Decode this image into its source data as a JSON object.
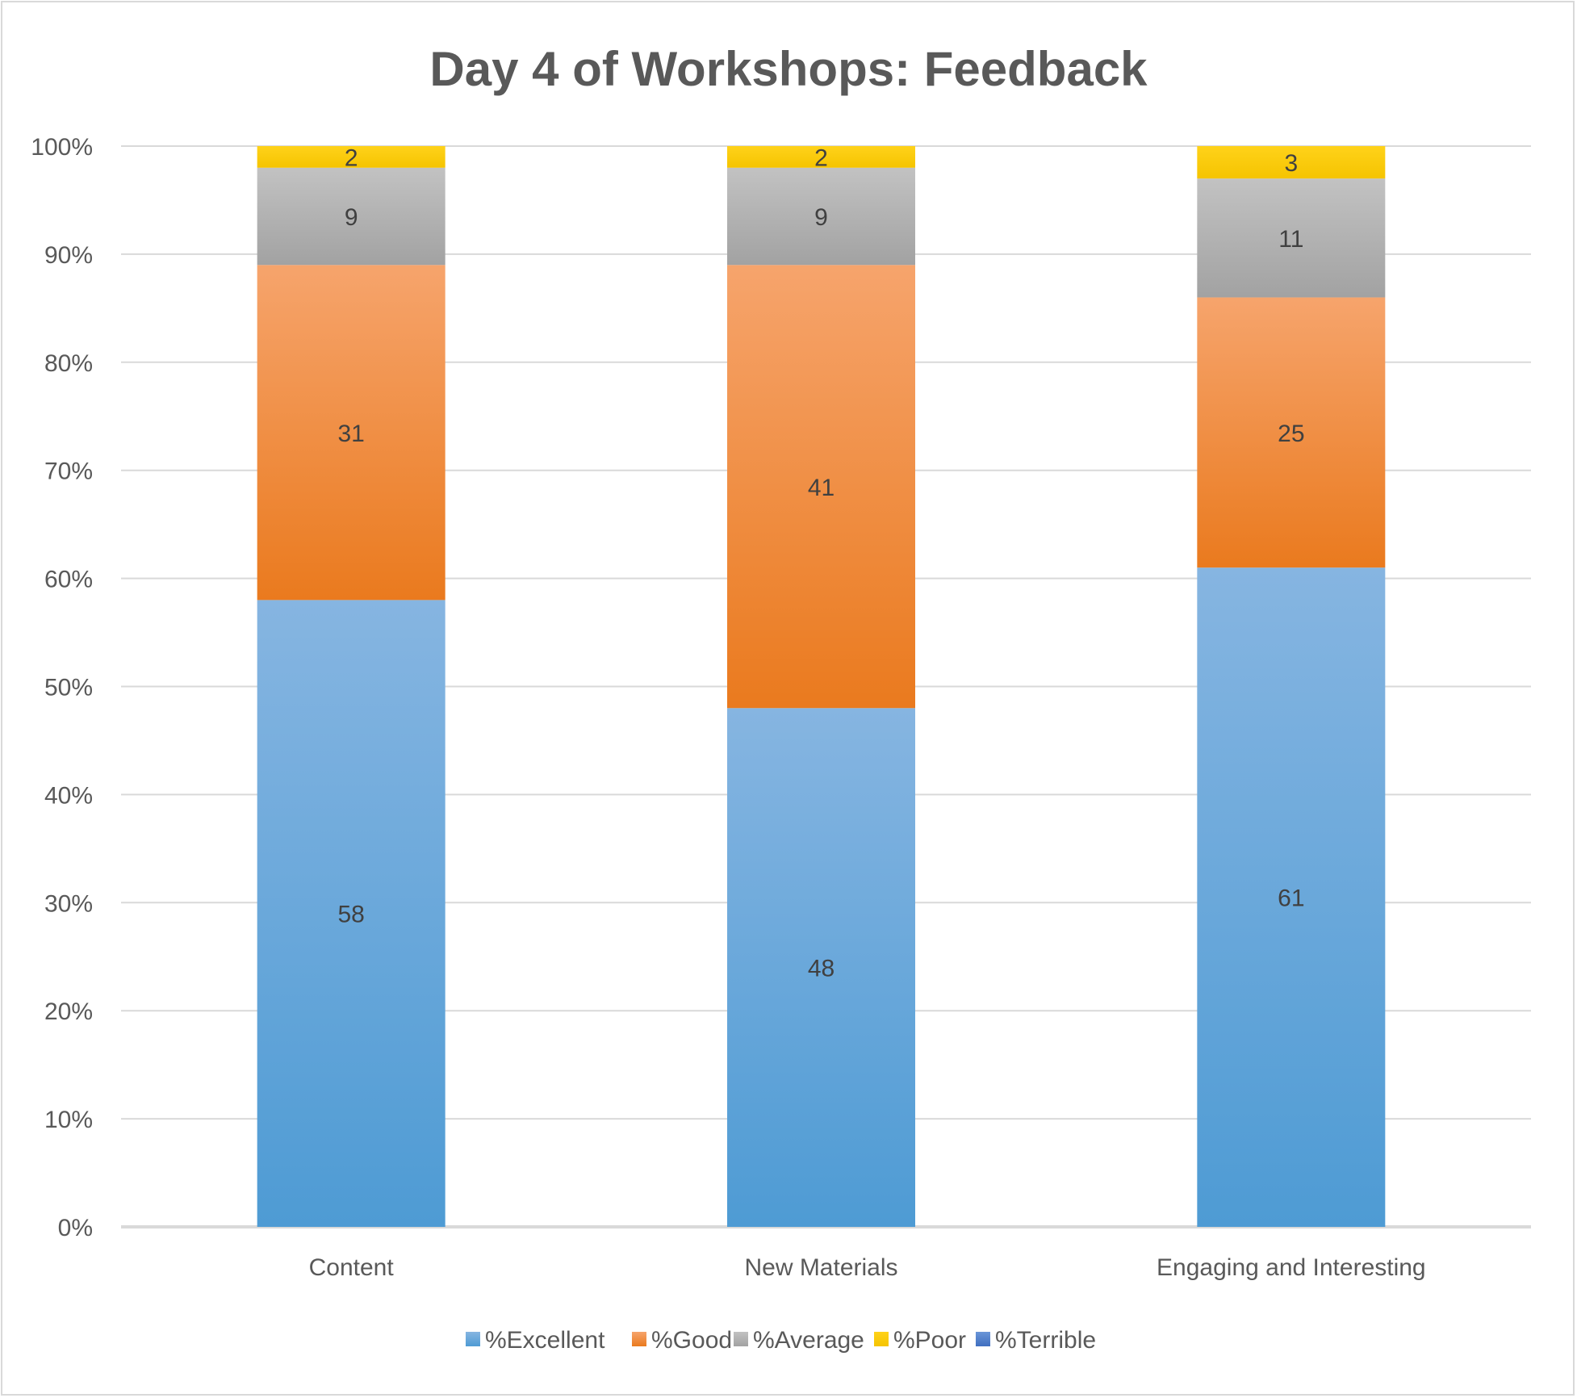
{
  "chart_data": {
    "type": "stacked-bar-100",
    "title": "Day 4 of Workshops: Feedback",
    "xlabel": "",
    "ylabel": "",
    "categories": [
      "Content",
      "New Materials",
      "Engaging and Interesting"
    ],
    "series": [
      {
        "name": "%Excellent",
        "values": [
          58,
          48,
          61
        ],
        "color": "#5b9bd5"
      },
      {
        "name": "%Good",
        "values": [
          31,
          41,
          25
        ],
        "color": "#ed7d31"
      },
      {
        "name": "%Average",
        "values": [
          9,
          9,
          11
        ],
        "color": "#a5a5a5"
      },
      {
        "name": "%Poor",
        "values": [
          2,
          2,
          3
        ],
        "color": "#ffc000"
      },
      {
        "name": "%Terrible",
        "values": [
          0,
          0,
          0
        ],
        "color": "#4472c4"
      }
    ],
    "ylim": [
      0,
      100
    ],
    "yticks": [
      "0%",
      "10%",
      "20%",
      "30%",
      "40%",
      "50%",
      "60%",
      "70%",
      "80%",
      "90%",
      "100%"
    ],
    "grid": true,
    "legend": "bottom"
  }
}
